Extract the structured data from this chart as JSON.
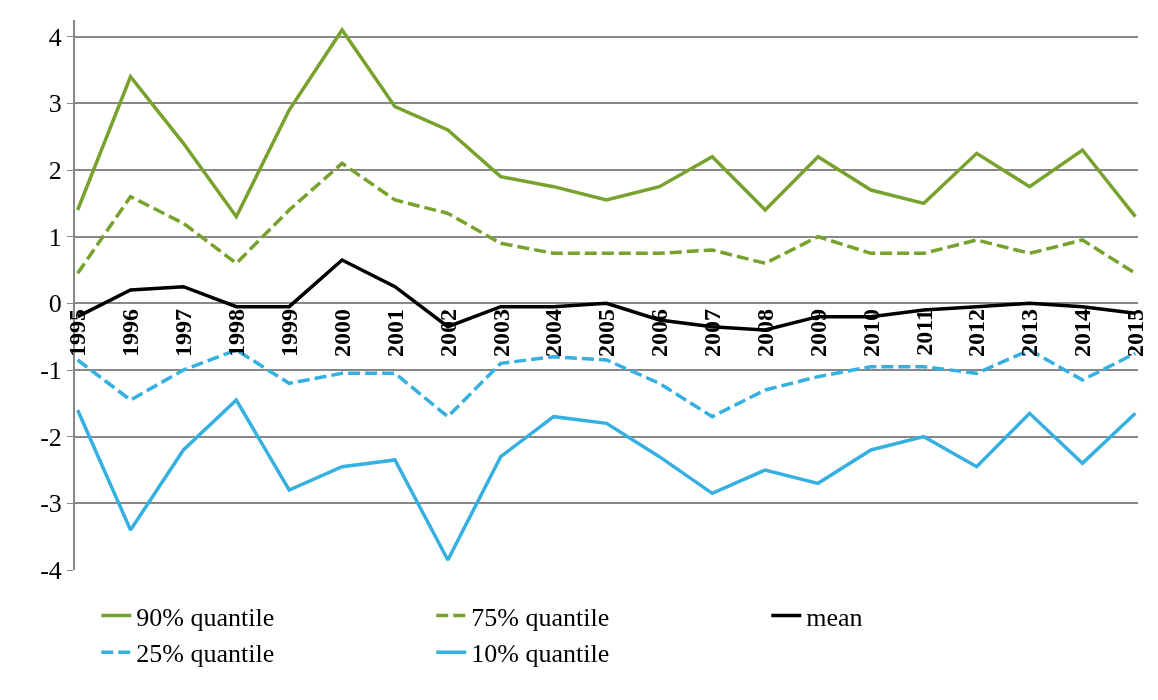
{
  "chart_data": {
    "type": "line",
    "categories": [
      "1995",
      "1996",
      "1997",
      "1998",
      "1999",
      "2000",
      "2001",
      "2002",
      "2003",
      "2004",
      "2005",
      "2006",
      "2007",
      "2008",
      "2009",
      "2010",
      "2011",
      "2012",
      "2013",
      "2014",
      "2015"
    ],
    "series": [
      {
        "name": "90% quantile",
        "color": "#77a22d",
        "line_style": "solid",
        "values": [
          1.4,
          3.4,
          2.4,
          1.3,
          2.9,
          4.1,
          2.95,
          2.6,
          1.9,
          1.75,
          1.55,
          1.75,
          2.2,
          1.4,
          2.2,
          1.7,
          1.5,
          2.25,
          1.75,
          2.3,
          1.3
        ]
      },
      {
        "name": "75% quantile",
        "color": "#77a22d",
        "line_style": "dashed",
        "values": [
          0.45,
          1.6,
          1.2,
          0.6,
          1.4,
          2.1,
          1.55,
          1.35,
          0.9,
          0.75,
          0.75,
          0.75,
          0.8,
          0.6,
          1.0,
          0.75,
          0.75,
          0.95,
          0.75,
          0.95,
          0.45
        ]
      },
      {
        "name": "mean",
        "color": "#000000",
        "line_style": "solid",
        "values": [
          -0.2,
          0.2,
          0.25,
          -0.05,
          -0.05,
          0.65,
          0.25,
          -0.35,
          -0.05,
          -0.05,
          0.0,
          -0.25,
          -0.35,
          -0.4,
          -0.2,
          -0.2,
          -0.1,
          -0.05,
          0.0,
          -0.05,
          -0.15
        ]
      },
      {
        "name": "25% quantile",
        "color": "#36b0e0",
        "line_style": "dashed",
        "values": [
          -0.85,
          -1.45,
          -1.0,
          -0.7,
          -1.2,
          -1.05,
          -1.05,
          -1.7,
          -0.9,
          -0.8,
          -0.85,
          -1.2,
          -1.7,
          -1.3,
          -1.1,
          -0.95,
          -0.95,
          -1.05,
          -0.7,
          -1.15,
          -0.75
        ]
      },
      {
        "name": "10% quantile",
        "color": "#36b0e0",
        "line_style": "solid",
        "values": [
          -1.6,
          -3.4,
          -2.2,
          -1.45,
          -2.8,
          -2.45,
          -2.35,
          -3.85,
          -2.3,
          -1.7,
          -1.8,
          -2.3,
          -2.85,
          -2.5,
          -2.7,
          -2.2,
          -2.0,
          -2.45,
          -1.65,
          -2.4,
          -1.65
        ]
      }
    ],
    "ylim": [
      -4,
      4.25
    ],
    "yticks": [
      -4,
      -3,
      -2,
      -1,
      0,
      1,
      2,
      3,
      4
    ],
    "grid": "y",
    "legend": "bottom",
    "marker": "none"
  }
}
